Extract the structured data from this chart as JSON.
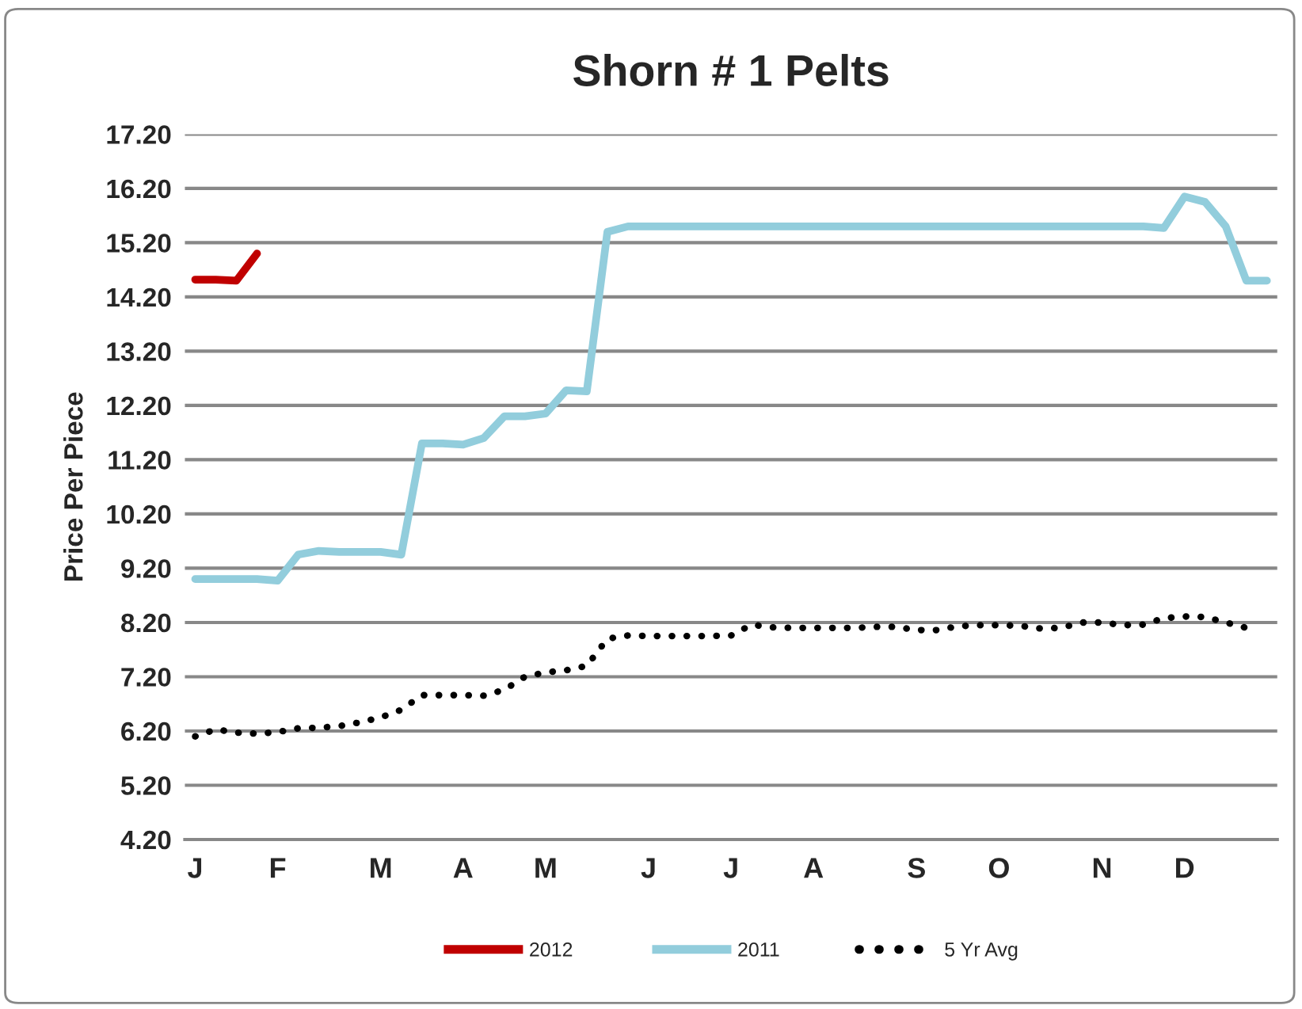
{
  "chart_data": {
    "type": "line",
    "title": "Shorn # 1 Pelts",
    "ylabel": "Price Per Piece",
    "categories": [
      "J",
      null,
      null,
      null,
      "F",
      null,
      null,
      null,
      null,
      "M",
      null,
      null,
      null,
      "A",
      null,
      null,
      null,
      "M",
      null,
      null,
      null,
      null,
      "J",
      null,
      null,
      null,
      "J",
      null,
      null,
      null,
      "A",
      null,
      null,
      null,
      null,
      "S",
      null,
      null,
      null,
      "O",
      null,
      null,
      null,
      null,
      "N",
      null,
      null,
      null,
      "D",
      null,
      null,
      null,
      null
    ],
    "series": [
      {
        "name": "2012",
        "color": "#c00000",
        "line_style": "solid",
        "values": [
          14.52,
          14.52,
          14.5,
          15.0,
          null,
          null,
          null,
          null,
          null,
          null,
          null,
          null,
          null,
          null,
          null,
          null,
          null,
          null,
          null,
          null,
          null,
          null,
          null,
          null,
          null,
          null,
          null,
          null,
          null,
          null,
          null,
          null,
          null,
          null,
          null,
          null,
          null,
          null,
          null,
          null,
          null,
          null,
          null,
          null,
          null,
          null,
          null,
          null,
          null,
          null,
          null,
          null,
          null
        ]
      },
      {
        "name": "2011",
        "color": "#92cddc",
        "line_style": "solid",
        "values": [
          9.0,
          9.0,
          9.0,
          9.0,
          8.97,
          9.45,
          9.52,
          9.5,
          9.5,
          9.5,
          9.45,
          11.5,
          11.5,
          11.48,
          11.6,
          12.0,
          12.0,
          12.05,
          12.48,
          12.46,
          15.4,
          15.5,
          15.5,
          15.5,
          15.5,
          15.5,
          15.5,
          15.5,
          15.5,
          15.5,
          15.5,
          15.5,
          15.5,
          15.5,
          15.5,
          15.5,
          15.5,
          15.5,
          15.5,
          15.5,
          15.5,
          15.5,
          15.5,
          15.5,
          15.5,
          15.5,
          15.5,
          15.47,
          16.05,
          15.95,
          15.5,
          14.5,
          14.5
        ]
      },
      {
        "name": "5 Yr Avg",
        "color": "#000000",
        "line_style": "dotted",
        "values": [
          6.1,
          6.23,
          6.17,
          6.15,
          6.18,
          6.25,
          6.26,
          6.29,
          6.36,
          6.45,
          6.59,
          6.86,
          6.86,
          6.86,
          6.85,
          6.96,
          7.2,
          7.28,
          7.32,
          7.4,
          7.9,
          7.96,
          7.95,
          7.95,
          7.95,
          7.95,
          7.96,
          8.16,
          8.11,
          8.1,
          8.1,
          8.1,
          8.1,
          8.12,
          8.12,
          8.06,
          8.06,
          8.13,
          8.15,
          8.15,
          8.14,
          8.09,
          8.1,
          8.2,
          8.2,
          8.15,
          8.16,
          8.28,
          8.31,
          8.3,
          8.2,
          8.1,
          null
        ]
      }
    ],
    "ylim": [
      4.2,
      17.2
    ],
    "yticks": [
      {
        "value": 4.2,
        "label": "4.20"
      },
      {
        "value": 5.2,
        "label": "5.20"
      },
      {
        "value": 6.2,
        "label": "6.20"
      },
      {
        "value": 7.2,
        "label": "7.20"
      },
      {
        "value": 8.2,
        "label": "8.20"
      },
      {
        "value": 9.2,
        "label": "9.20"
      },
      {
        "value": 10.2,
        "label": "10.20"
      },
      {
        "value": 11.2,
        "label": "11.20"
      },
      {
        "value": 12.2,
        "label": "12.20"
      },
      {
        "value": 13.2,
        "label": "13.20"
      },
      {
        "value": 14.2,
        "label": "14.20"
      },
      {
        "value": 15.2,
        "label": "15.20"
      },
      {
        "value": 16.2,
        "label": "16.20"
      },
      {
        "value": 17.2,
        "label": "17.20"
      }
    ],
    "grid": "y",
    "legend": "bottom",
    "marker": "none"
  }
}
